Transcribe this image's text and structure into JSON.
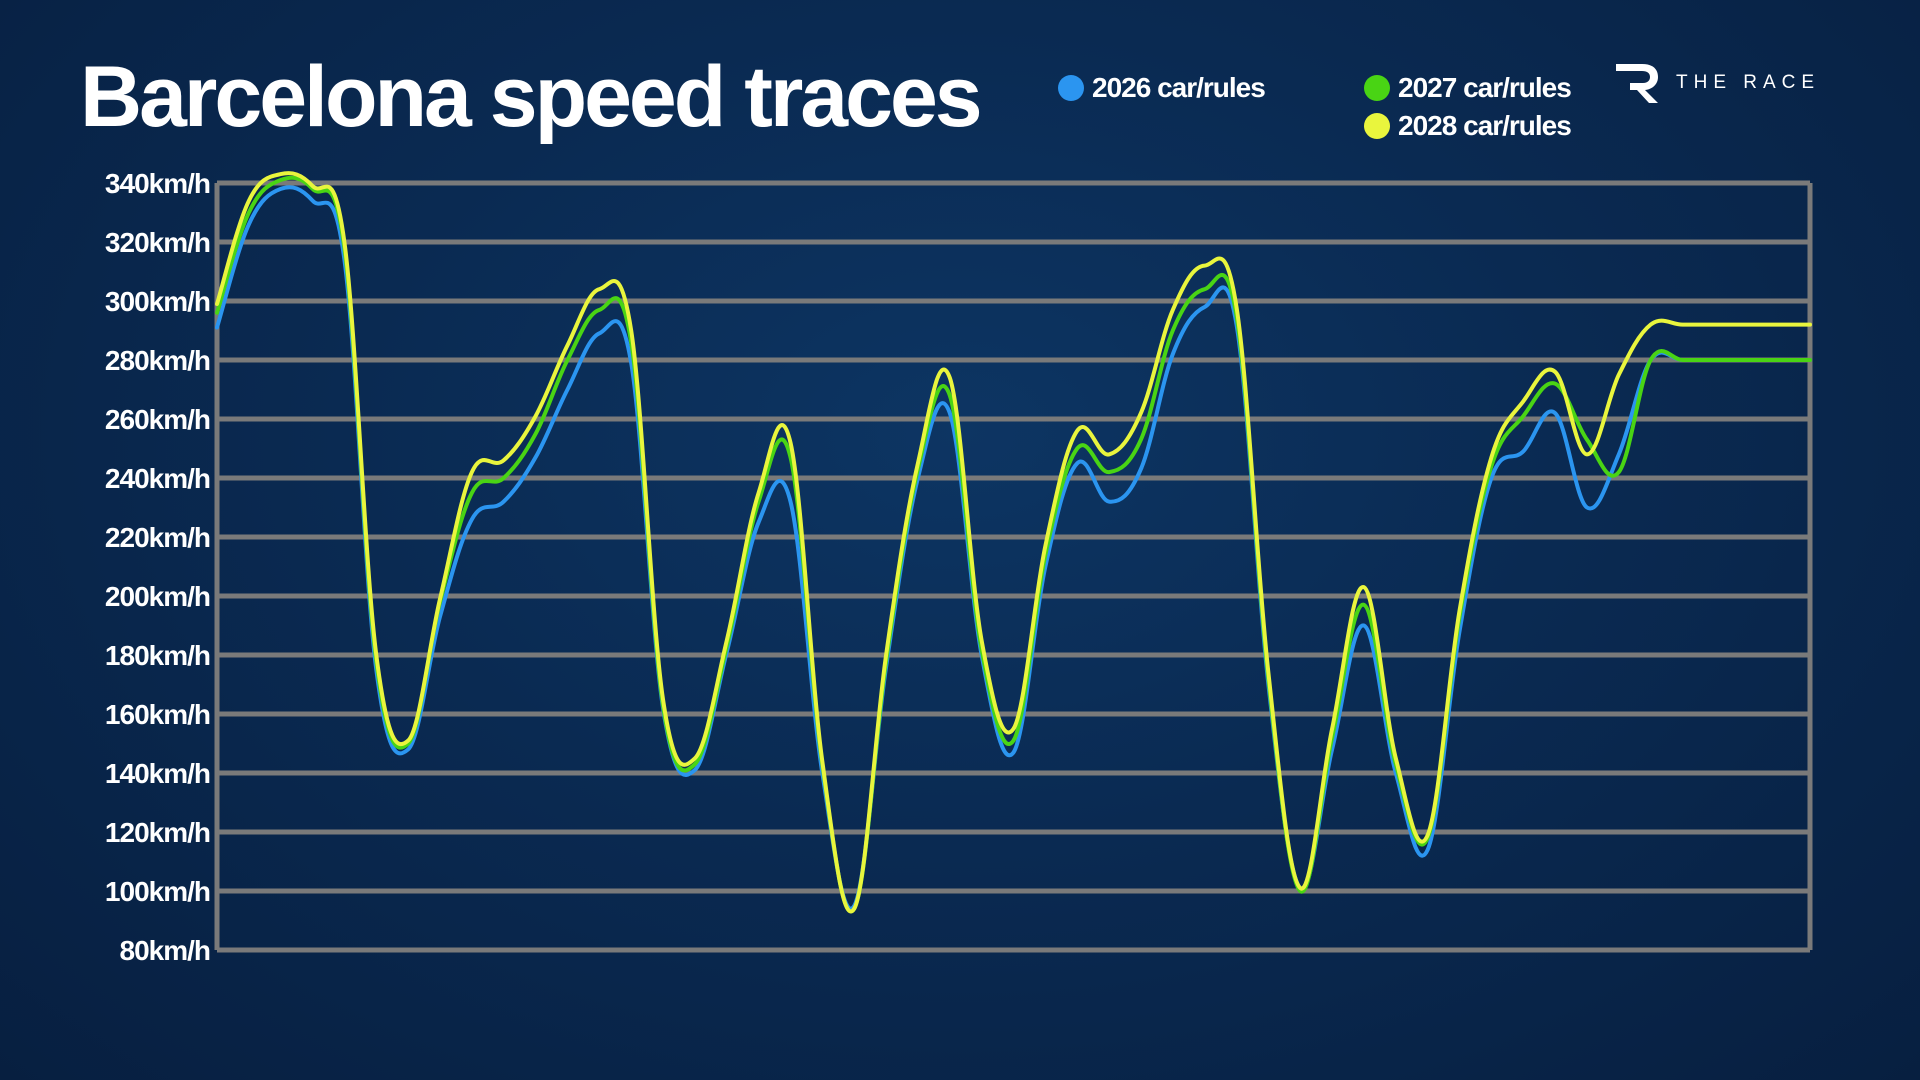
{
  "header": {
    "title": "Barcelona speed traces",
    "brand": "THE RACE"
  },
  "colors": {
    "background": "#0a2a52",
    "grid": "#7a7a7a",
    "series_2026": "#2b95f0",
    "series_2027": "#49d414",
    "series_2028": "#e9f53d"
  },
  "icons": {
    "brand_logo": "the-race-r-logo"
  },
  "chart_data": {
    "type": "line",
    "title": "Barcelona speed traces",
    "xlabel": "",
    "ylabel": "",
    "ylim": [
      80,
      340
    ],
    "yticks": [
      "340km/h",
      "320km/h",
      "300km/h",
      "280km/h",
      "260km/h",
      "240km/h",
      "220km/h",
      "200km/h",
      "180km/h",
      "160km/h",
      "140km/h",
      "120km/h",
      "100km/h",
      "80km/h"
    ],
    "grid": true,
    "legend_position": "top",
    "x": [
      0,
      2,
      4,
      6,
      8,
      10,
      12,
      14,
      16,
      18,
      20,
      22,
      24,
      26,
      28,
      30,
      32,
      34,
      36,
      38,
      40,
      42,
      44,
      46,
      48,
      50,
      52,
      54,
      56,
      58,
      60,
      62,
      64,
      66,
      68,
      70,
      72,
      74,
      76,
      78,
      80,
      82,
      84,
      86,
      88,
      90,
      92,
      94,
      96,
      98,
      100
    ],
    "series": [
      {
        "name": "2026 car/rules",
        "color": "#2b95f0",
        "values": [
          291,
          326,
          338,
          334,
          314,
          175,
          148,
          193,
          226,
          232,
          247,
          270,
          289,
          279,
          162,
          141,
          181,
          225,
          232,
          140,
          95,
          176,
          240,
          262,
          180,
          147,
          210,
          245,
          232,
          243,
          282,
          298,
          292,
          170,
          101,
          148,
          190,
          140,
          114,
          188,
          240,
          249,
          262,
          230,
          248,
          280,
          280,
          280,
          280,
          280,
          280
        ]
      },
      {
        "name": "2027 car/rules",
        "color": "#49d414",
        "values": [
          296,
          330,
          341,
          338,
          318,
          178,
          150,
          198,
          235,
          240,
          255,
          280,
          297,
          286,
          163,
          143,
          183,
          232,
          247,
          143,
          94,
          178,
          243,
          268,
          182,
          151,
          214,
          250,
          242,
          253,
          290,
          304,
          295,
          172,
          100,
          152,
          197,
          143,
          118,
          193,
          244,
          261,
          272,
          253,
          242,
          280,
          280,
          280,
          280,
          280,
          280
        ]
      },
      {
        "name": "2028 car/rules",
        "color": "#e9f53d",
        "values": [
          299,
          334,
          343,
          339,
          320,
          180,
          151,
          199,
          242,
          246,
          261,
          285,
          304,
          290,
          165,
          145,
          185,
          235,
          252,
          144,
          94,
          180,
          245,
          274,
          185,
          155,
          217,
          256,
          248,
          262,
          297,
          312,
          298,
          174,
          101,
          155,
          203,
          145,
          119,
          195,
          247,
          266,
          276,
          248,
          275,
          292,
          292,
          292,
          292,
          292,
          292
        ]
      }
    ]
  }
}
